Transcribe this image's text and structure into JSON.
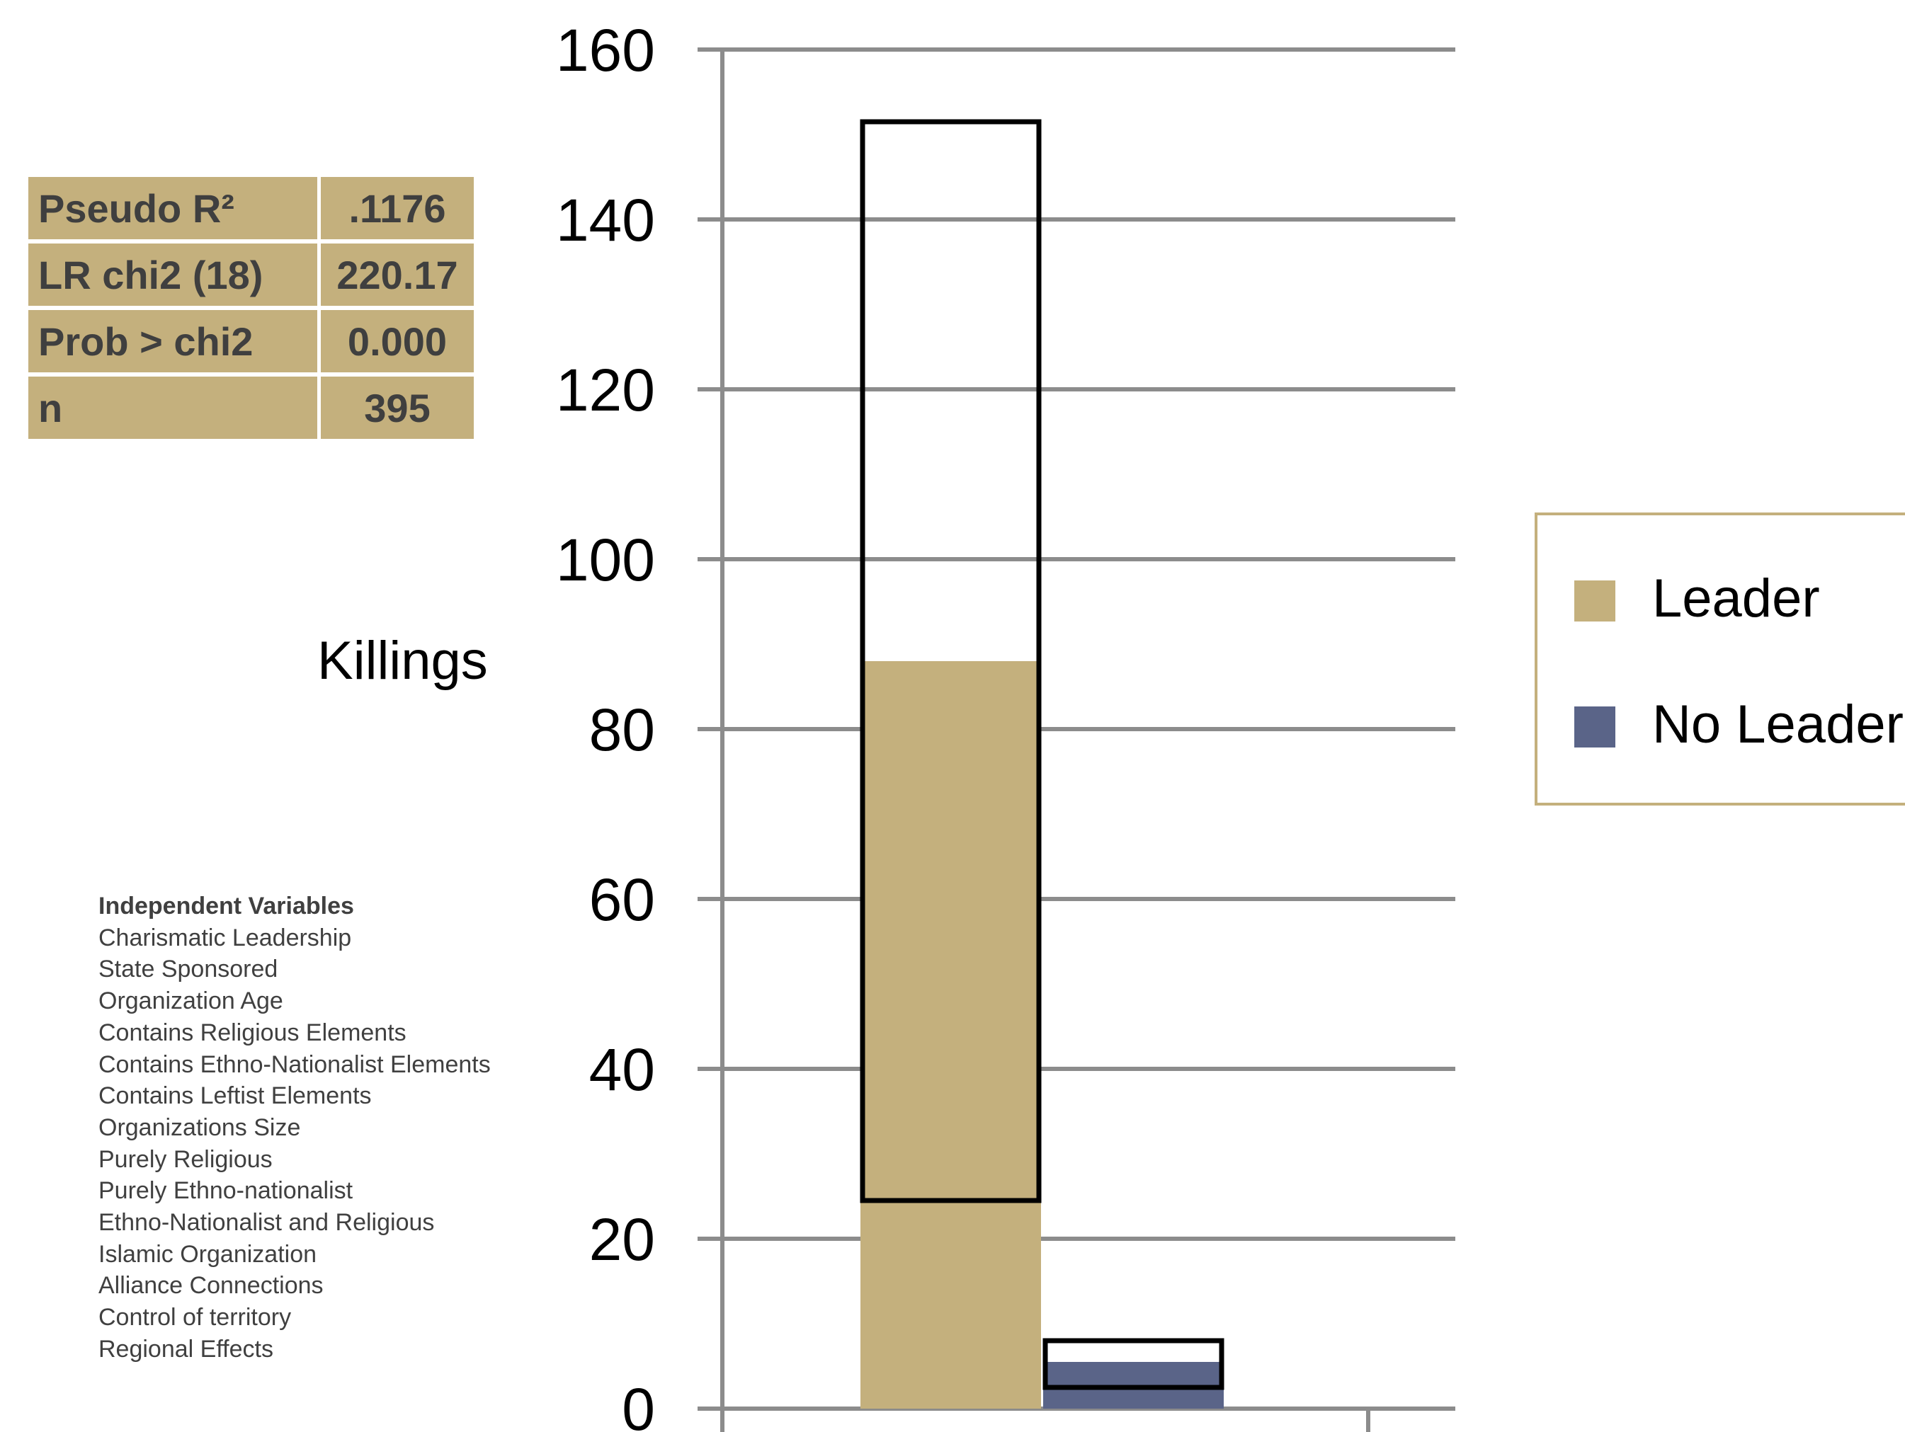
{
  "stats": {
    "rows": [
      {
        "label": "Pseudo R²",
        "value": ".1176"
      },
      {
        "label": "LR chi2 (18)",
        "value": "220.17"
      },
      {
        "label": "Prob > chi2",
        "value": "0.000"
      },
      {
        "label": "n",
        "value": "395"
      }
    ]
  },
  "independent_variables": {
    "title": "Independent Variables",
    "items": [
      "Charismatic Leadership",
      "State Sponsored",
      "Organization Age",
      "Contains Religious Elements",
      "Contains Ethno-Nationalist Elements",
      "Contains Leftist Elements",
      "Organizations Size",
      "Purely Religious",
      "Purely Ethno-nationalist",
      "Ethno-Nationalist and Religious",
      "Islamic Organization",
      "Alliance Connections",
      "Control of territory",
      "Regional Effects"
    ]
  },
  "chart_data": {
    "type": "bar",
    "ylabel": "Killings",
    "ylim": [
      0,
      160
    ],
    "yticks": [
      0,
      20,
      40,
      60,
      80,
      100,
      120,
      140,
      160
    ],
    "grid": true,
    "legend_position": "right",
    "series": [
      {
        "name": "Leader",
        "value": 88,
        "ci_low": 24.5,
        "ci_high": 151.5,
        "color": "#c4b07d"
      },
      {
        "name": "No Leader",
        "value": 5.5,
        "ci_low": 2.5,
        "ci_high": 8,
        "color": "#5a6488"
      }
    ]
  }
}
